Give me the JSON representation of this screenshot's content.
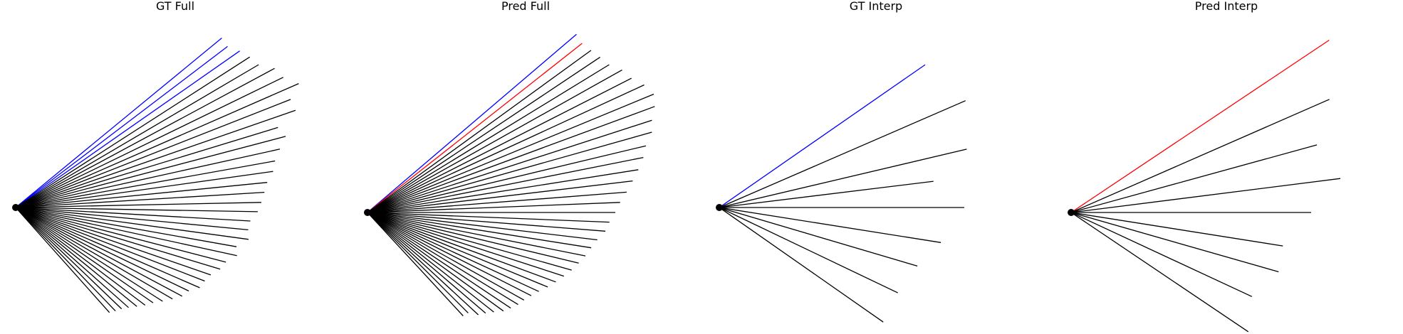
{
  "colors": {
    "default_line": "#000000",
    "gt_highlight": "#0000ff",
    "pred_highlight": "#ff0000"
  },
  "panels": [
    {
      "id": "gt-full",
      "title": "GT Full",
      "highlight_color": "#0000ff",
      "lines": [
        {
          "angle": 39.5,
          "length": 375,
          "color": "#0000ff"
        },
        {
          "angle": 37.3,
          "length": 374,
          "color": "#0000ff"
        },
        {
          "angle": 35.0,
          "length": 384,
          "color": "#0000ff"
        },
        {
          "angle": 32.8,
          "length": 391,
          "color": "#000000"
        },
        {
          "angle": 30.5,
          "length": 396,
          "color": "#000000"
        },
        {
          "angle": 28.3,
          "length": 413,
          "color": "#000000"
        },
        {
          "angle": 26.0,
          "length": 418,
          "color": "#000000"
        },
        {
          "angle": 23.7,
          "length": 434,
          "color": "#000000"
        },
        {
          "angle": 21.5,
          "length": 415,
          "color": "#000000"
        },
        {
          "angle": 19.2,
          "length": 416,
          "color": "#000000"
        },
        {
          "angle": 17.0,
          "length": 385,
          "color": "#000000"
        },
        {
          "angle": 14.8,
          "length": 392,
          "color": "#000000"
        },
        {
          "angle": 12.5,
          "length": 380,
          "color": "#000000"
        },
        {
          "angle": 10.2,
          "length": 370,
          "color": "#000000"
        },
        {
          "angle": 8.0,
          "length": 365,
          "color": "#000000"
        },
        {
          "angle": 5.7,
          "length": 355,
          "color": "#000000"
        },
        {
          "angle": 3.5,
          "length": 350,
          "color": "#000000"
        },
        {
          "angle": 1.2,
          "length": 345,
          "color": "#000000"
        },
        {
          "angle": -1.0,
          "length": 340,
          "color": "#000000"
        },
        {
          "angle": -3.3,
          "length": 330,
          "color": "#000000"
        },
        {
          "angle": -5.5,
          "length": 328,
          "color": "#000000"
        },
        {
          "angle": -7.8,
          "length": 330,
          "color": "#000000"
        },
        {
          "angle": -10.1,
          "length": 315,
          "color": "#000000"
        },
        {
          "angle": -12.3,
          "length": 318,
          "color": "#000000"
        },
        {
          "angle": -14.6,
          "length": 305,
          "color": "#000000"
        },
        {
          "angle": -16.8,
          "length": 300,
          "color": "#000000"
        },
        {
          "angle": -19.1,
          "length": 290,
          "color": "#000000"
        },
        {
          "angle": -21.3,
          "length": 285,
          "color": "#000000"
        },
        {
          "angle": -23.6,
          "length": 282,
          "color": "#000000"
        },
        {
          "angle": -25.8,
          "length": 270,
          "color": "#000000"
        },
        {
          "angle": -28.1,
          "length": 265,
          "color": "#000000"
        },
        {
          "angle": -30.3,
          "length": 255,
          "color": "#000000"
        },
        {
          "angle": -32.6,
          "length": 245,
          "color": "#000000"
        },
        {
          "angle": -34.8,
          "length": 235,
          "color": "#000000"
        },
        {
          "angle": -37.1,
          "length": 228,
          "color": "#000000"
        },
        {
          "angle": -39.3,
          "length": 220,
          "color": "#000000"
        },
        {
          "angle": -41.6,
          "length": 212,
          "color": "#000000"
        },
        {
          "angle": -43.8,
          "length": 206,
          "color": "#000000"
        },
        {
          "angle": -46.1,
          "length": 202,
          "color": "#000000"
        },
        {
          "angle": -48.3,
          "length": 198,
          "color": "#000000"
        }
      ]
    },
    {
      "id": "pred-full",
      "title": "Pred Full",
      "highlight_color": "#ff0000",
      "lines": [
        {
          "angle": 40.5,
          "length": 386,
          "color": "#0000ff"
        },
        {
          "angle": 38.3,
          "length": 384,
          "color": "#ff0000"
        },
        {
          "angle": 36.0,
          "length": 388,
          "color": "#000000"
        },
        {
          "angle": 33.8,
          "length": 393,
          "color": "#000000"
        },
        {
          "angle": 31.5,
          "length": 398,
          "color": "#000000"
        },
        {
          "angle": 29.3,
          "length": 410,
          "color": "#000000"
        },
        {
          "angle": 27.0,
          "length": 416,
          "color": "#000000"
        },
        {
          "angle": 24.8,
          "length": 428,
          "color": "#000000"
        },
        {
          "angle": 22.5,
          "length": 435,
          "color": "#000000"
        },
        {
          "angle": 20.3,
          "length": 430,
          "color": "#000000"
        },
        {
          "angle": 18.0,
          "length": 420,
          "color": "#000000"
        },
        {
          "angle": 15.8,
          "length": 415,
          "color": "#000000"
        },
        {
          "angle": 13.5,
          "length": 402,
          "color": "#000000"
        },
        {
          "angle": 11.3,
          "length": 395,
          "color": "#000000"
        },
        {
          "angle": 9.0,
          "length": 385,
          "color": "#000000"
        },
        {
          "angle": 6.8,
          "length": 375,
          "color": "#000000"
        },
        {
          "angle": 4.5,
          "length": 365,
          "color": "#000000"
        },
        {
          "angle": 2.3,
          "length": 355,
          "color": "#000000"
        },
        {
          "angle": 0.0,
          "length": 348,
          "color": "#000000"
        },
        {
          "angle": -2.3,
          "length": 340,
          "color": "#000000"
        },
        {
          "angle": -4.5,
          "length": 335,
          "color": "#000000"
        },
        {
          "angle": -6.8,
          "length": 325,
          "color": "#000000"
        },
        {
          "angle": -9.0,
          "length": 318,
          "color": "#000000"
        },
        {
          "angle": -11.3,
          "length": 312,
          "color": "#000000"
        },
        {
          "angle": -13.5,
          "length": 305,
          "color": "#000000"
        },
        {
          "angle": -15.8,
          "length": 298,
          "color": "#000000"
        },
        {
          "angle": -18.0,
          "length": 290,
          "color": "#000000"
        },
        {
          "angle": -20.3,
          "length": 282,
          "color": "#000000"
        },
        {
          "angle": -22.5,
          "length": 274,
          "color": "#000000"
        },
        {
          "angle": -24.8,
          "length": 265,
          "color": "#000000"
        },
        {
          "angle": -27.0,
          "length": 258,
          "color": "#000000"
        },
        {
          "angle": -29.3,
          "length": 252,
          "color": "#000000"
        },
        {
          "angle": -31.5,
          "length": 248,
          "color": "#000000"
        },
        {
          "angle": -33.8,
          "length": 242,
          "color": "#000000"
        },
        {
          "angle": -36.0,
          "length": 236,
          "color": "#000000"
        },
        {
          "angle": -38.3,
          "length": 226,
          "color": "#000000"
        },
        {
          "angle": -40.5,
          "length": 218,
          "color": "#000000"
        },
        {
          "angle": -42.8,
          "length": 212,
          "color": "#000000"
        },
        {
          "angle": -45.0,
          "length": 200,
          "color": "#000000"
        },
        {
          "angle": -47.3,
          "length": 198,
          "color": "#000000"
        }
      ]
    },
    {
      "id": "gt-interp",
      "title": "GT Interp",
      "highlight_color": "#0000ff",
      "lines": [
        {
          "angle": 34.8,
          "length": 352,
          "color": "#0000ff"
        },
        {
          "angle": 23.5,
          "length": 377,
          "color": "#000000"
        },
        {
          "angle": 13.3,
          "length": 357,
          "color": "#000000"
        },
        {
          "angle": 7.0,
          "length": 303,
          "color": "#000000"
        },
        {
          "angle": 0.0,
          "length": 344,
          "color": "#000000"
        },
        {
          "angle": -9.0,
          "length": 315,
          "color": "#000000"
        },
        {
          "angle": -16.5,
          "length": 290,
          "color": "#000000"
        },
        {
          "angle": -25.6,
          "length": 278,
          "color": "#000000"
        },
        {
          "angle": -35.0,
          "length": 281,
          "color": "#000000"
        }
      ]
    },
    {
      "id": "pred-interp",
      "title": "Pred Interp",
      "highlight_color": "#ff0000",
      "lines": [
        {
          "angle": 33.8,
          "length": 436,
          "color": "#ff0000"
        },
        {
          "angle": 23.7,
          "length": 396,
          "color": "#000000"
        },
        {
          "angle": 15.4,
          "length": 358,
          "color": "#000000"
        },
        {
          "angle": 7.2,
          "length": 381,
          "color": "#000000"
        },
        {
          "angle": 0.0,
          "length": 337,
          "color": "#000000"
        },
        {
          "angle": -9.0,
          "length": 301,
          "color": "#000000"
        },
        {
          "angle": -16.0,
          "length": 303,
          "color": "#000000"
        },
        {
          "angle": -25.0,
          "length": 280,
          "color": "#000000"
        },
        {
          "angle": -34.0,
          "length": 300,
          "color": "#000000"
        }
      ]
    }
  ]
}
